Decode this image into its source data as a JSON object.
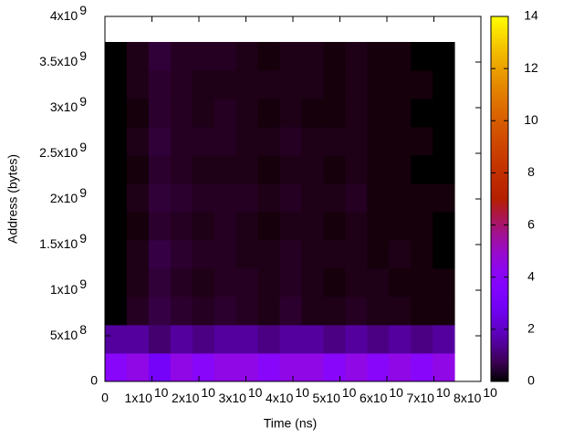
{
  "chart_data": {
    "type": "heatmap",
    "xlabel": "Time (ns)",
    "ylabel": "Address (bytes)",
    "xlim": [
      0,
      80000000000
    ],
    "xticks": [
      0,
      {
        "value": 10000000000,
        "label": "1x10",
        "exponent": "10"
      },
      {
        "value": 20000000000,
        "label": "2x10",
        "exponent": "10"
      },
      {
        "value": 30000000000,
        "label": "3x10",
        "exponent": "10"
      },
      {
        "value": 40000000000,
        "label": "4x10",
        "exponent": "10"
      },
      {
        "value": 50000000000,
        "label": "5x10",
        "exponent": "10"
      },
      {
        "value": 60000000000,
        "label": "6x10",
        "exponent": "10"
      },
      {
        "value": 70000000000,
        "label": "7x10",
        "exponent": "10"
      },
      {
        "value": 80000000000,
        "label": "8x10",
        "exponent": "10"
      }
    ],
    "ylim": [
      0,
      4000000000
    ],
    "yticks": [
      0,
      {
        "value": 500000000,
        "label": "5x10",
        "exponent": "8"
      },
      {
        "value": 1000000000,
        "label": "1x10",
        "exponent": "9"
      },
      {
        "value": 1500000000,
        "label": "1.5x10",
        "exponent": "9"
      },
      {
        "value": 2000000000,
        "label": "2x10",
        "exponent": "9"
      },
      {
        "value": 2500000000,
        "label": "2.5x10",
        "exponent": "9"
      },
      {
        "value": 3000000000,
        "label": "3x10",
        "exponent": "9"
      },
      {
        "value": 3500000000,
        "label": "3.5x10",
        "exponent": "9"
      },
      {
        "value": 4000000000,
        "label": "4x10",
        "exponent": "9"
      }
    ],
    "zlim": [
      0,
      14
    ],
    "zticks": [
      0,
      2,
      4,
      6,
      8,
      10,
      12,
      14
    ],
    "palette": "rgbformulae 7,5,15",
    "x_edges": [
      0,
      4650000000,
      9300000000,
      13950000000,
      18600000000,
      23250000000,
      27900000000,
      32550000000,
      37200000000,
      41850000000,
      46500000000,
      51150000000,
      55800000000,
      60450000000,
      65100000000,
      69750000000,
      74400000000
    ],
    "y_edges": [
      0,
      310000000,
      620000000,
      930000000,
      1240000000,
      1550000000,
      1860000000,
      2170000000,
      2480000000,
      2790000000,
      3100000000,
      3410000000,
      3720000000
    ],
    "z": [
      [
        4,
        4.5,
        3,
        4.5,
        4,
        4.5,
        4.5,
        4,
        4.5,
        4.5,
        4,
        4.5,
        4,
        4.5,
        4,
        4.5
      ],
      [
        1.5,
        1.5,
        1,
        1.5,
        1.2,
        1.5,
        1.5,
        1.2,
        1.5,
        1.5,
        1.2,
        1.5,
        1.2,
        1.5,
        1.2,
        1.5
      ],
      [
        0,
        0.3,
        0.6,
        0.4,
        0.3,
        0.4,
        0.3,
        0.2,
        0.4,
        0.2,
        0.2,
        0.3,
        0.2,
        0.2,
        0.1,
        0.1
      ],
      [
        0,
        0.2,
        0.5,
        0.3,
        0.2,
        0.3,
        0.3,
        0.2,
        0.3,
        0.2,
        0.1,
        0.2,
        0.2,
        0.1,
        0.1,
        0.1
      ],
      [
        0,
        0.2,
        0.6,
        0.4,
        0.3,
        0.3,
        0.2,
        0.2,
        0.3,
        0.2,
        0.2,
        0.2,
        0.1,
        0.2,
        0.1,
        0
      ],
      [
        0,
        0.1,
        0.4,
        0.3,
        0.2,
        0.3,
        0.2,
        0.1,
        0.2,
        0.2,
        0.1,
        0.2,
        0.1,
        0.1,
        0.1,
        0
      ],
      [
        0,
        0.2,
        0.5,
        0.4,
        0.3,
        0.3,
        0.3,
        0.2,
        0.3,
        0.2,
        0.2,
        0.3,
        0.1,
        0.1,
        0.1,
        0.1
      ],
      [
        0,
        0.1,
        0.4,
        0.3,
        0.2,
        0.2,
        0.2,
        0.1,
        0.2,
        0.2,
        0.1,
        0.2,
        0.1,
        0.1,
        0,
        0
      ],
      [
        0,
        0.2,
        0.5,
        0.3,
        0.3,
        0.3,
        0.2,
        0.2,
        0.3,
        0.2,
        0.2,
        0.2,
        0.1,
        0.1,
        0.1,
        0
      ],
      [
        0,
        0.1,
        0.4,
        0.3,
        0.2,
        0.3,
        0.2,
        0.1,
        0.2,
        0.1,
        0.1,
        0.2,
        0.1,
        0.1,
        0,
        0
      ],
      [
        0,
        0.2,
        0.4,
        0.3,
        0.2,
        0.2,
        0.2,
        0.2,
        0.2,
        0.2,
        0.1,
        0.2,
        0.1,
        0.1,
        0.1,
        0
      ],
      [
        0,
        0.2,
        0.5,
        0.3,
        0.3,
        0.3,
        0.2,
        0.1,
        0.2,
        0.2,
        0.1,
        0.2,
        0.1,
        0.1,
        0,
        0
      ]
    ]
  }
}
